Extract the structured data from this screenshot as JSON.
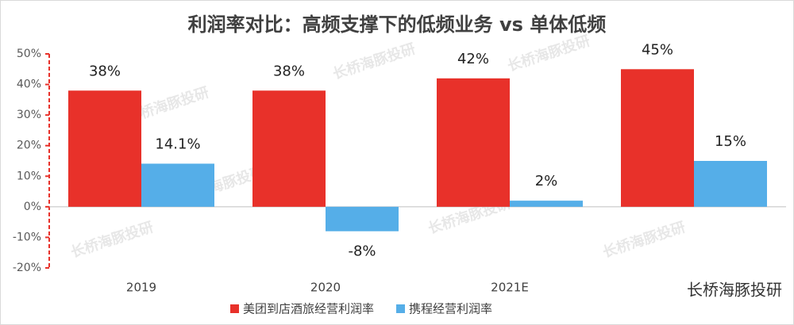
{
  "chart_data": {
    "type": "bar",
    "title": "利润率对比：高频支撑下的低频业务 vs 单体低频",
    "categories": [
      "2019",
      "2020",
      "2021E",
      null
    ],
    "series": [
      {
        "name": "美团到店酒旅经营利润率",
        "color": "#e8312a",
        "values": [
          38,
          38,
          42,
          45
        ],
        "value_labels": [
          "38%",
          "38%",
          "42%",
          "45%"
        ]
      },
      {
        "name": "携程经营利润率",
        "color": "#55aee8",
        "values": [
          14.1,
          -8,
          2,
          15
        ],
        "value_labels": [
          "14.1%",
          "-8%",
          "2%",
          "15%"
        ]
      }
    ],
    "ylim": [
      -20,
      50
    ],
    "yticks": [
      {
        "value": -20,
        "label": "-20%"
      },
      {
        "value": -10,
        "label": "-10%"
      },
      {
        "value": 0,
        "label": "0%"
      },
      {
        "value": 10,
        "label": "10%"
      },
      {
        "value": 20,
        "label": "20%"
      },
      {
        "value": 30,
        "label": "30%"
      },
      {
        "value": 40,
        "label": "40%"
      },
      {
        "value": 50,
        "label": "50%"
      }
    ],
    "watermark": "长桥海豚投研",
    "legend": "bottom"
  }
}
